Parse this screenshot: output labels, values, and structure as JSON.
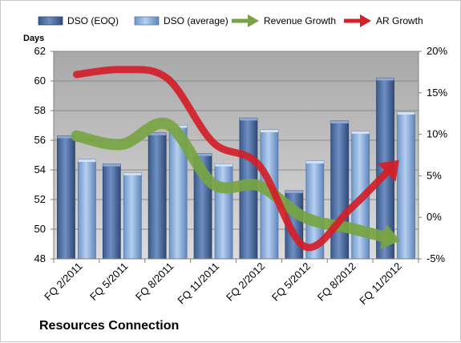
{
  "chart_data": {
    "type": "bar",
    "categories": [
      "FQ 2/2011",
      "FQ 5/2011",
      "FQ 8/2011",
      "FQ 11/2011",
      "FQ 2/2012",
      "FQ 5/2012",
      "FQ 8/2012",
      "FQ 11/2012"
    ],
    "series": [
      {
        "name": "DSO (EOQ)",
        "type": "bar",
        "axis": "left",
        "values": [
          56.3,
          54.4,
          56.5,
          55.1,
          57.5,
          52.6,
          57.3,
          60.2
        ]
      },
      {
        "name": "DSO (average)",
        "type": "bar",
        "axis": "left",
        "values": [
          54.7,
          53.8,
          57.0,
          54.4,
          56.7,
          54.6,
          56.6,
          57.9
        ]
      },
      {
        "name": "Revenue Growth",
        "type": "line",
        "axis": "right",
        "values": [
          0.098,
          0.088,
          0.112,
          0.04,
          0.038,
          0.0,
          -0.013,
          -0.027
        ]
      },
      {
        "name": "AR Growth",
        "type": "line",
        "axis": "right",
        "values": [
          0.172,
          0.178,
          0.167,
          0.09,
          0.063,
          -0.035,
          0.01,
          0.065
        ]
      }
    ],
    "ylabel": "Days",
    "ylim": [
      48,
      62
    ],
    "yticks": [
      "48",
      "50",
      "52",
      "54",
      "56",
      "58",
      "60",
      "62"
    ],
    "y2lim": [
      -0.05,
      0.2
    ],
    "y2ticks": [
      "-5%",
      "0%",
      "5%",
      "10%",
      "15%",
      "20%"
    ],
    "legend_position": "top",
    "grid": "horizontal",
    "colors": {
      "plot_bg": "#c0c0c0",
      "bar_eoq": "#4f6fa3",
      "bar_avg": "#87a9d9",
      "revenue": "#77a443",
      "ar": "#d32029"
    }
  },
  "footer": {
    "title": "Resources Connection"
  }
}
